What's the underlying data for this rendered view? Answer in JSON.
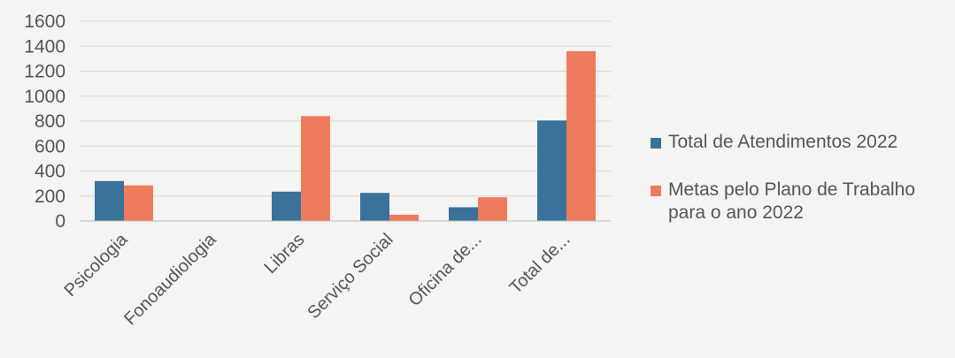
{
  "chart_data": {
    "type": "bar",
    "categories": [
      "Psicologia",
      "Fonoaudiologia",
      "Libras",
      "Serviço Social",
      "Oficina de...",
      "Total de..."
    ],
    "series": [
      {
        "name": "Total de Atendimentos 2022",
        "values": [
          320,
          0,
          235,
          225,
          110,
          805
        ],
        "color": "#3a729b"
      },
      {
        "name": "Metas pelo Plano de Trabalho para o ano 2022",
        "values": [
          285,
          0,
          840,
          50,
          190,
          1360
        ],
        "color": "#ee7b5c"
      }
    ],
    "ylim": [
      0,
      1600
    ],
    "yticks": [
      0,
      200,
      400,
      600,
      800,
      1000,
      1200,
      1400,
      1600
    ],
    "grid": true,
    "legend_position": "right",
    "title": "",
    "xlabel": "",
    "ylabel": ""
  }
}
